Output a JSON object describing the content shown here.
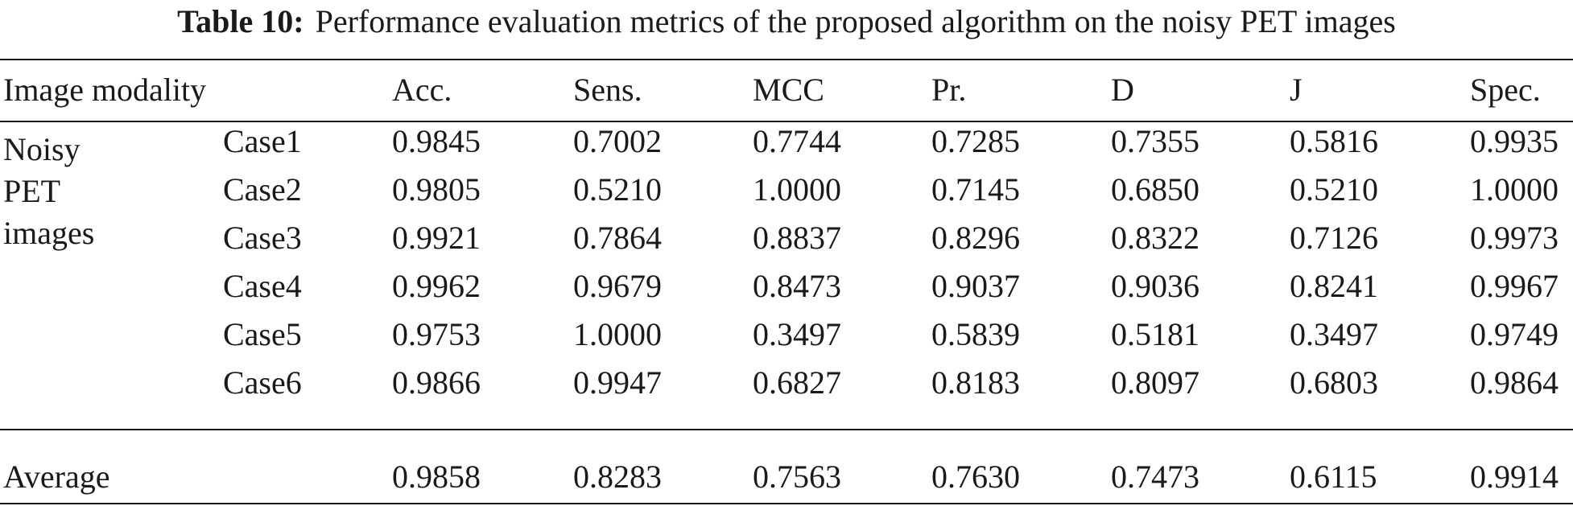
{
  "caption": {
    "label": "Table 10:",
    "text": "Performance evaluation metrics of the proposed algorithm on the noisy PET images"
  },
  "header": {
    "modality": "Image modality",
    "metrics": [
      "Acc.",
      "Sens.",
      "MCC",
      "Pr.",
      "D",
      "J",
      "Spec."
    ]
  },
  "group": {
    "line1": "Noisy",
    "line2": "PET",
    "line3": "images"
  },
  "rows": [
    {
      "case": "Case1",
      "values": [
        "0.9845",
        "0.7002",
        "0.7744",
        "0.7285",
        "0.7355",
        "0.5816",
        "0.9935"
      ]
    },
    {
      "case": "Case2",
      "values": [
        "0.9805",
        "0.5210",
        "1.0000",
        "0.7145",
        "0.6850",
        "0.5210",
        "1.0000"
      ]
    },
    {
      "case": "Case3",
      "values": [
        "0.9921",
        "0.7864",
        "0.8837",
        "0.8296",
        "0.8322",
        "0.7126",
        "0.9973"
      ]
    },
    {
      "case": "Case4",
      "values": [
        "0.9962",
        "0.9679",
        "0.8473",
        "0.9037",
        "0.9036",
        "0.8241",
        "0.9967"
      ]
    },
    {
      "case": "Case5",
      "values": [
        "0.9753",
        "1.0000",
        "0.3497",
        "0.5839",
        "0.5181",
        "0.3497",
        "0.9749"
      ]
    },
    {
      "case": "Case6",
      "values": [
        "0.9866",
        "0.9947",
        "0.6827",
        "0.8183",
        "0.8097",
        "0.6803",
        "0.9864"
      ]
    }
  ],
  "average": {
    "label": "Average",
    "values": [
      "0.9858",
      "0.8283",
      "0.7563",
      "0.7630",
      "0.7473",
      "0.6115",
      "0.9914"
    ]
  }
}
